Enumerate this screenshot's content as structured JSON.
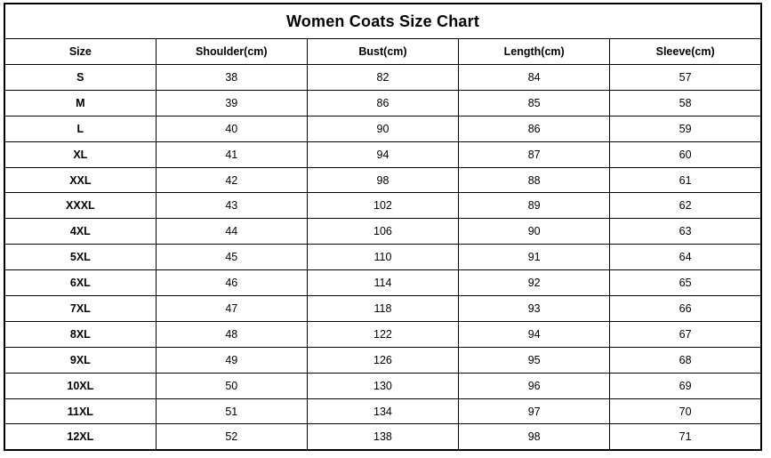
{
  "title": "Women Coats Size Chart",
  "chart_data": {
    "type": "table",
    "title": "Women Coats Size Chart",
    "columns": [
      "Size",
      "Shoulder(cm)",
      "Bust(cm)",
      "Length(cm)",
      "Sleeve(cm)"
    ],
    "rows": [
      [
        "S",
        38,
        82,
        84,
        57
      ],
      [
        "M",
        39,
        86,
        85,
        58
      ],
      [
        "L",
        40,
        90,
        86,
        59
      ],
      [
        "XL",
        41,
        94,
        87,
        60
      ],
      [
        "XXL",
        42,
        98,
        88,
        61
      ],
      [
        "XXXL",
        43,
        102,
        89,
        62
      ],
      [
        "4XL",
        44,
        106,
        90,
        63
      ],
      [
        "5XL",
        45,
        110,
        91,
        64
      ],
      [
        "6XL",
        46,
        114,
        92,
        65
      ],
      [
        "7XL",
        47,
        118,
        93,
        66
      ],
      [
        "8XL",
        48,
        122,
        94,
        67
      ],
      [
        "9XL",
        49,
        126,
        95,
        68
      ],
      [
        "10XL",
        50,
        130,
        96,
        69
      ],
      [
        "11XL",
        51,
        134,
        97,
        70
      ],
      [
        "12XL",
        52,
        138,
        98,
        71
      ]
    ],
    "layout": {
      "grid": true,
      "header_bold": true,
      "title_position": "top-center-spanning"
    }
  },
  "colors": {
    "background": "#ffffff",
    "border": "#000000",
    "text": "#000000"
  }
}
